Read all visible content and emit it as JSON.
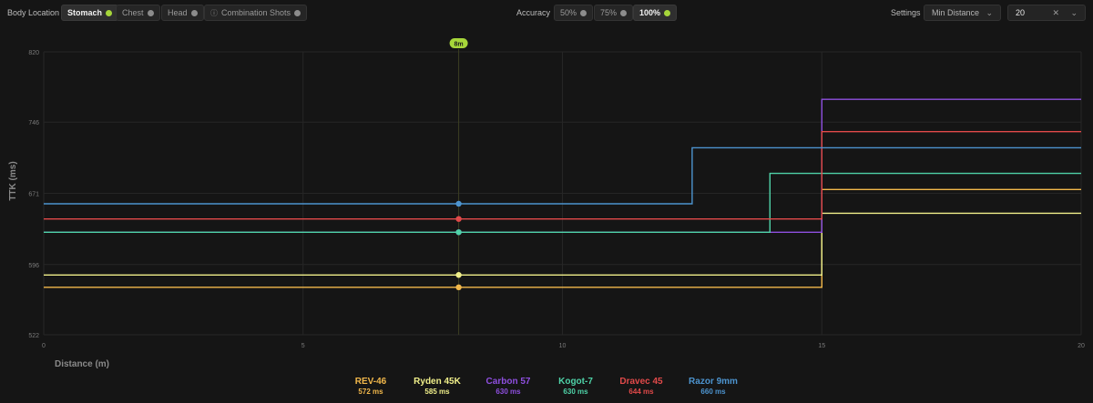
{
  "filters": {
    "body_location_label": "Body Location",
    "body_options": [
      {
        "label": "Stomach",
        "active": true
      },
      {
        "label": "Chest",
        "active": false
      },
      {
        "label": "Head",
        "active": false
      },
      {
        "label": "Combination Shots",
        "active": false
      }
    ],
    "accuracy_label": "Accuracy",
    "accuracy_options": [
      {
        "label": "50%",
        "active": false
      },
      {
        "label": "75%",
        "active": false
      },
      {
        "label": "100%",
        "active": true
      }
    ],
    "settings_label": "Settings",
    "settings_select_value": "Min Distance",
    "distance_input_value": "20"
  },
  "marker_label": "8m",
  "colors": {
    "background": "#151515",
    "active_dot": "#a6d63a",
    "grid": "#262626"
  },
  "chart_data": {
    "type": "line",
    "step": true,
    "xlabel": "Distance (m)",
    "ylabel": "TTK (ms)",
    "xlim": [
      0,
      20
    ],
    "ylim": [
      522,
      820
    ],
    "x_ticks": [
      "0",
      "5",
      "10",
      "15",
      "20"
    ],
    "y_ticks": [
      "522",
      "596",
      "671",
      "746",
      "820"
    ],
    "marker_x": 8,
    "grid": true,
    "legend_position": "bottom",
    "series": [
      {
        "name": "REV-46",
        "value_label": "572 ms",
        "color": "#f2b84b",
        "points": [
          [
            0,
            572
          ],
          [
            15,
            572
          ],
          [
            15,
            675
          ],
          [
            20,
            675
          ]
        ]
      },
      {
        "name": "Ryden 45K",
        "value_label": "585 ms",
        "color": "#f0ef8a",
        "points": [
          [
            0,
            585
          ],
          [
            15,
            585
          ],
          [
            15,
            650
          ],
          [
            20,
            650
          ]
        ]
      },
      {
        "name": "Carbon 57",
        "value_label": "630 ms",
        "color": "#8f4fe0",
        "points": [
          [
            0,
            630
          ],
          [
            15,
            630
          ],
          [
            15,
            770
          ],
          [
            20,
            770
          ]
        ]
      },
      {
        "name": "Kogot-7",
        "value_label": "630 ms",
        "color": "#4fd3a8",
        "points": [
          [
            0,
            630
          ],
          [
            14,
            630
          ],
          [
            14,
            692
          ],
          [
            20,
            692
          ]
        ]
      },
      {
        "name": "Dravec 45",
        "value_label": "644 ms",
        "color": "#e24a4a",
        "points": [
          [
            0,
            644
          ],
          [
            15,
            644
          ],
          [
            15,
            736
          ],
          [
            20,
            736
          ]
        ]
      },
      {
        "name": "Razor 9mm",
        "value_label": "660 ms",
        "color": "#4d94cf",
        "points": [
          [
            0,
            660
          ],
          [
            12.5,
            660
          ],
          [
            12.5,
            719
          ],
          [
            20,
            719
          ]
        ]
      }
    ]
  }
}
